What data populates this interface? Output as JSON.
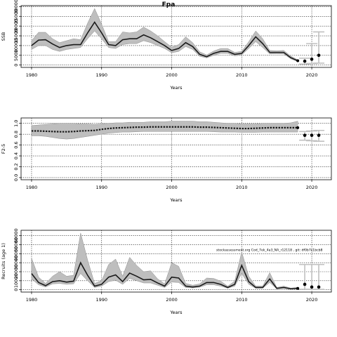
{
  "title": "Fpa",
  "watermark": "stockassessment.org  Cod_7ek_4a3_NA_r12118 , git: df0b7c1bcb8",
  "colors": {
    "band": "#bebebe",
    "band_stroke": "#8f8f8f",
    "line": "#1a1a1a",
    "point": "#000000",
    "whisker": "#c0c0c0",
    "grid": "#000000"
  },
  "chart_data": [
    {
      "type": "line",
      "name": "ssb",
      "title": "Fpa",
      "xlabel": "Years",
      "ylabel": "SSB",
      "xlim": [
        1978.5,
        2022.8
      ],
      "ylim": [
        -1200,
        30500
      ],
      "xticks": [
        1980,
        1990,
        2000,
        2010,
        2020
      ],
      "yticks": [
        0,
        5000,
        10000,
        15000,
        20000,
        25000,
        30000
      ],
      "ytick_labels": [
        "0",
        "5000",
        "10000",
        "15000",
        "20000",
        "25000",
        "30000"
      ],
      "grid": true,
      "years": [
        1980,
        1981,
        1982,
        1983,
        1984,
        1985,
        1986,
        1987,
        1988,
        1989,
        1990,
        1991,
        1992,
        1993,
        1994,
        1995,
        1996,
        1997,
        1998,
        1999,
        2000,
        2001,
        2002,
        2003,
        2004,
        2005,
        2006,
        2007,
        2008,
        2009,
        2010,
        2011,
        2012,
        2013,
        2014,
        2015,
        2016,
        2017,
        2018
      ],
      "estimate": [
        10000,
        12800,
        13000,
        10800,
        9000,
        10000,
        10500,
        10500,
        16500,
        22000,
        16500,
        10500,
        10000,
        13000,
        13500,
        13500,
        15500,
        14000,
        12000,
        10000,
        7500,
        8500,
        11500,
        9500,
        5500,
        4300,
        6000,
        7000,
        7000,
        5500,
        6000,
        10000,
        14500,
        11000,
        6500,
        6500,
        6500,
        3800,
        2200
      ],
      "lower": [
        8000,
        10000,
        10000,
        8000,
        7000,
        8000,
        8500,
        9000,
        13500,
        17500,
        13500,
        9000,
        8500,
        10500,
        11000,
        11000,
        12500,
        11500,
        10000,
        8500,
        6300,
        7000,
        9500,
        8000,
        4500,
        3700,
        5000,
        6000,
        6000,
        4700,
        5200,
        8500,
        12000,
        9000,
        5700,
        5800,
        5700,
        3200,
        1800
      ],
      "upper": [
        12500,
        16800,
        16800,
        13500,
        11500,
        12500,
        13500,
        13000,
        21500,
        29000,
        21000,
        12000,
        12000,
        17000,
        16500,
        17000,
        19500,
        17500,
        15000,
        12000,
        9200,
        10500,
        14500,
        11500,
        6800,
        5200,
        7200,
        8500,
        8500,
        6500,
        7000,
        12000,
        17500,
        13500,
        7500,
        7300,
        7500,
        4600,
        2700
      ],
      "projection": [
        {
          "year": 2019,
          "value": 2000,
          "lower": 500,
          "upper": 3500
        },
        {
          "year": 2020,
          "value": 3000,
          "lower": 800,
          "upper": 11000
        },
        {
          "year": 2021,
          "value": 5000,
          "lower": 1000,
          "upper": 17000
        }
      ]
    },
    {
      "type": "line",
      "name": "fbar",
      "xlabel": "Years",
      "ylabel": "F2-5",
      "xlim": [
        1978.5,
        2022.8
      ],
      "ylim": [
        -0.04,
        1.1
      ],
      "xticks": [
        1980,
        1990,
        2000,
        2010,
        2020
      ],
      "yticks": [
        0,
        0.2,
        0.4,
        0.6,
        0.8,
        1.0
      ],
      "ytick_labels": [
        "0.0",
        "0.2",
        "0.4",
        "0.6",
        "0.8",
        "1.0"
      ],
      "grid": true,
      "years": [
        1980,
        1981,
        1982,
        1983,
        1984,
        1985,
        1986,
        1987,
        1988,
        1989,
        1990,
        1991,
        1992,
        1993,
        1994,
        1995,
        1996,
        1997,
        1998,
        1999,
        2000,
        2001,
        2002,
        2003,
        2004,
        2005,
        2006,
        2007,
        2008,
        2009,
        2010,
        2011,
        2012,
        2013,
        2014,
        2015,
        2016,
        2017,
        2018
      ],
      "estimate": [
        0.86,
        0.86,
        0.855,
        0.85,
        0.845,
        0.845,
        0.85,
        0.86,
        0.865,
        0.87,
        0.89,
        0.905,
        0.915,
        0.92,
        0.925,
        0.93,
        0.93,
        0.935,
        0.935,
        0.935,
        0.935,
        0.935,
        0.935,
        0.935,
        0.93,
        0.93,
        0.925,
        0.92,
        0.915,
        0.91,
        0.905,
        0.905,
        0.91,
        0.915,
        0.92,
        0.92,
        0.92,
        0.92,
        0.92
      ],
      "lower": [
        0.77,
        0.77,
        0.76,
        0.74,
        0.72,
        0.71,
        0.72,
        0.74,
        0.76,
        0.78,
        0.8,
        0.82,
        0.83,
        0.84,
        0.84,
        0.845,
        0.85,
        0.85,
        0.85,
        0.85,
        0.85,
        0.85,
        0.85,
        0.85,
        0.85,
        0.85,
        0.845,
        0.84,
        0.84,
        0.84,
        0.835,
        0.835,
        0.835,
        0.84,
        0.84,
        0.84,
        0.84,
        0.84,
        0.84
      ],
      "upper": [
        0.96,
        0.97,
        0.98,
        0.99,
        1.0,
        1.0,
        1.0,
        0.99,
        0.99,
        0.98,
        0.99,
        1.0,
        1.01,
        1.01,
        1.02,
        1.02,
        1.02,
        1.03,
        1.03,
        1.03,
        1.04,
        1.04,
        1.04,
        1.04,
        1.03,
        1.03,
        1.02,
        1.01,
        1.0,
        1.0,
        0.99,
        0.99,
        0.99,
        1.0,
        1.0,
        1.0,
        1.0,
        1.01,
        1.04
      ],
      "projection": [
        {
          "year": 2019,
          "value": 0.78,
          "lower": 0.69,
          "upper": 0.85
        },
        {
          "year": 2020,
          "value": 0.78,
          "lower": 0.68,
          "upper": 0.86
        },
        {
          "year": 2021,
          "value": 0.78,
          "lower": 0.67,
          "upper": 0.87
        }
      ]
    },
    {
      "type": "line",
      "name": "recruits",
      "xlabel": "Years",
      "ylabel": "Recruits (age 1)",
      "xlim": [
        1978.5,
        2022.8
      ],
      "ylim": [
        -2600,
        66000
      ],
      "xticks": [
        1980,
        1990,
        2000,
        2010,
        2020
      ],
      "yticks": [
        0,
        10000,
        20000,
        30000,
        40000,
        50000,
        60000
      ],
      "ytick_labels": [
        "0",
        "10000",
        "20000",
        "30000",
        "40000",
        "50000",
        "60000"
      ],
      "grid": true,
      "years": [
        1980,
        1981,
        1982,
        1983,
        1984,
        1985,
        1986,
        1987,
        1988,
        1989,
        1990,
        1991,
        1992,
        1993,
        1994,
        1995,
        1996,
        1997,
        1998,
        1999,
        2000,
        2001,
        2002,
        2003,
        2004,
        2005,
        2006,
        2007,
        2008,
        2009,
        2010,
        2011,
        2012,
        2013,
        2014,
        2015,
        2016,
        2017,
        2018
      ],
      "estimate": [
        18000,
        8000,
        4500,
        9000,
        10000,
        8500,
        9500,
        30000,
        16000,
        4000,
        6000,
        14000,
        16500,
        9000,
        18500,
        15000,
        11000,
        11500,
        7500,
        4000,
        14000,
        13000,
        4000,
        3000,
        4000,
        8000,
        8000,
        6000,
        2500,
        6000,
        27000,
        9000,
        2500,
        2500,
        12000,
        1500,
        2500,
        1000,
        1500
      ],
      "lower": [
        12000,
        5500,
        3000,
        6500,
        7000,
        6000,
        6500,
        18000,
        10000,
        2500,
        4000,
        9000,
        10500,
        6000,
        12500,
        10000,
        7500,
        7500,
        5000,
        2500,
        8500,
        8000,
        2500,
        2000,
        2800,
        5500,
        5500,
        4000,
        1700,
        4000,
        18000,
        6000,
        1600,
        1700,
        8000,
        1000,
        1500,
        600,
        800
      ],
      "upper": [
        35000,
        14000,
        7000,
        15000,
        20000,
        15000,
        16000,
        63000,
        33000,
        7000,
        10000,
        28000,
        34000,
        15000,
        36000,
        27000,
        20000,
        21000,
        12000,
        6500,
        30000,
        26000,
        7000,
        5000,
        6500,
        13000,
        12500,
        9500,
        4000,
        9500,
        42000,
        15000,
        4000,
        4000,
        19000,
        2500,
        4000,
        1800,
        2700
      ],
      "projection": [
        {
          "year": 2019,
          "value": 6000,
          "lower": 500,
          "upper": 28000
        },
        {
          "year": 2020,
          "value": 3000,
          "lower": 400,
          "upper": 28000
        },
        {
          "year": 2021,
          "value": 3000,
          "lower": 400,
          "upper": 28000
        }
      ]
    }
  ]
}
